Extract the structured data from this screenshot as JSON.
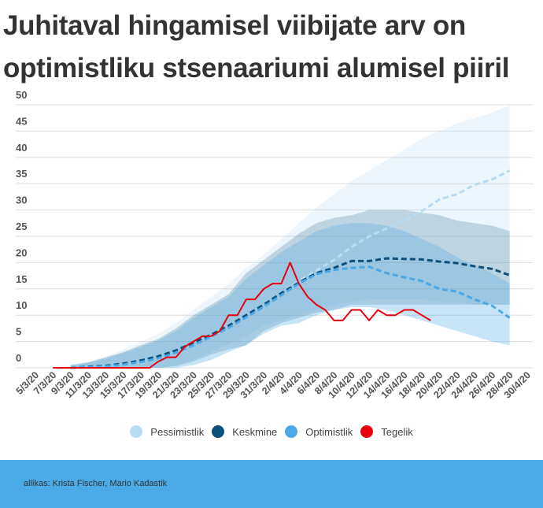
{
  "chart_data": {
    "type": "area",
    "title": "Juhitaval hingamisel viibijate arv on optimistliku stsenaariumi alumisel piiril",
    "xlabel": "",
    "ylabel": "",
    "ylim": [
      0,
      50
    ],
    "yticks": [
      0,
      5,
      10,
      15,
      20,
      25,
      30,
      35,
      40,
      45,
      50
    ],
    "grid": true,
    "legend_placement": "bottom",
    "x": [
      "5/3/20",
      "7/3/20",
      "9/3/20",
      "11/3/20",
      "13/3/20",
      "15/3/20",
      "17/3/20",
      "19/3/20",
      "21/3/20",
      "23/3/20",
      "25/3/20",
      "27/3/20",
      "29/3/20",
      "31/3/20",
      "2/4/20",
      "4/4/20",
      "6/4/20",
      "8/4/20",
      "10/4/20",
      "12/4/20",
      "14/4/20",
      "16/4/20",
      "18/4/20",
      "20/4/20",
      "22/4/20",
      "24/4/20",
      "26/4/20",
      "28/4/20",
      "30/4/20"
    ],
    "bands": [
      {
        "name": "Pessimistlik",
        "color": "#b8dcf5",
        "lower": [
          null,
          null,
          0,
          0,
          0,
          0,
          0,
          0,
          0.5,
          1.5,
          3,
          4.5,
          6,
          8,
          9,
          10,
          11,
          12,
          12.5,
          13,
          13,
          13,
          13,
          12.5,
          12.5,
          12,
          12,
          12,
          null
        ],
        "upper": [
          null,
          null,
          0.6,
          1.2,
          2.2,
          3.5,
          5,
          6.5,
          8.5,
          11,
          13.5,
          16,
          19,
          21.5,
          24.5,
          27.5,
          30.5,
          33,
          35.5,
          37.5,
          39.5,
          41.5,
          43.5,
          45,
          46.5,
          47.5,
          48.5,
          50,
          null
        ]
      },
      {
        "name": "Keskmine",
        "color": "#0b4f7a",
        "lower": [
          null,
          null,
          0,
          0,
          0,
          0,
          0,
          0,
          0.3,
          1.2,
          2.5,
          3.5,
          4.3,
          7,
          8.5,
          9.5,
          10.5,
          11,
          12,
          12,
          12,
          12,
          12,
          12,
          12,
          12,
          12,
          12,
          null
        ],
        "upper": [
          null,
          null,
          0.5,
          1,
          2,
          3,
          4.3,
          5.5,
          7.5,
          10,
          12,
          14,
          18,
          20.5,
          23,
          25.5,
          27.5,
          28.5,
          29,
          30,
          30,
          30,
          29.5,
          29,
          28,
          27.5,
          27,
          26,
          null
        ]
      },
      {
        "name": "Optimistlik",
        "color": "#4aa9e6",
        "lower": [
          null,
          null,
          0,
          0,
          0,
          0,
          0,
          0,
          0,
          0.5,
          1.5,
          3,
          4.3,
          6.5,
          8,
          8.5,
          10,
          11,
          11.5,
          11.5,
          11,
          10,
          9,
          8,
          7,
          6,
          5,
          4.3,
          null
        ],
        "upper": [
          null,
          null,
          0.5,
          1,
          1.8,
          2.8,
          4,
          5.2,
          7,
          9.5,
          11.5,
          13.5,
          17,
          19.5,
          22,
          24,
          26,
          27,
          27.5,
          27.5,
          27,
          26,
          24.5,
          23,
          21,
          19.5,
          18,
          16,
          null
        ]
      }
    ],
    "series": [
      {
        "name": "Pessimistlik",
        "color": "#b8dcf5",
        "style": "dashed",
        "values": [
          null,
          null,
          0,
          0.2,
          0.4,
          0.8,
          1.4,
          2.2,
          3.3,
          4.8,
          6.3,
          8,
          10,
          12,
          14.2,
          16.5,
          18.5,
          20.5,
          23,
          25,
          26.5,
          28,
          29.8,
          32,
          33,
          34.8,
          35.8,
          37.5,
          null
        ]
      },
      {
        "name": "Keskmine",
        "color": "#0b4f7a",
        "style": "dashed",
        "values": [
          null,
          null,
          0,
          0.2,
          0.4,
          0.8,
          1.4,
          2.2,
          3.3,
          4.8,
          6.3,
          8,
          10,
          12,
          14.2,
          16.2,
          18,
          19,
          20.3,
          20.3,
          20.8,
          20.7,
          20.6,
          20.2,
          19.9,
          19.3,
          18.8,
          17.6,
          null
        ]
      },
      {
        "name": "Optimistlik",
        "color": "#4aa9e6",
        "style": "dashed",
        "values": [
          null,
          null,
          0,
          0.1,
          0.3,
          0.6,
          1.1,
          1.8,
          2.9,
          4.3,
          5.9,
          7.6,
          9.6,
          11.6,
          13.8,
          16,
          17.8,
          18.6,
          19,
          19.2,
          18,
          17.2,
          16.5,
          15,
          14.5,
          13,
          11.8,
          9.5,
          null
        ]
      }
    ],
    "actual": {
      "name": "Tegelik",
      "color": "#e8000b",
      "points": [
        [
          "7/3/20",
          0
        ],
        [
          "8/3/20",
          0
        ],
        [
          "9/3/20",
          0
        ],
        [
          "10/3/20",
          0
        ],
        [
          "11/3/20",
          0
        ],
        [
          "12/3/20",
          0
        ],
        [
          "13/3/20",
          0
        ],
        [
          "14/3/20",
          0
        ],
        [
          "15/3/20",
          0
        ],
        [
          "16/3/20",
          0
        ],
        [
          "17/3/20",
          0
        ],
        [
          "18/3/20",
          0
        ],
        [
          "19/3/20",
          1.2
        ],
        [
          "20/3/20",
          2
        ],
        [
          "21/3/20",
          2
        ],
        [
          "22/3/20",
          4
        ],
        [
          "23/3/20",
          5
        ],
        [
          "24/3/20",
          6
        ],
        [
          "25/3/20",
          6
        ],
        [
          "26/3/20",
          7
        ],
        [
          "27/3/20",
          10
        ],
        [
          "28/3/20",
          10
        ],
        [
          "29/3/20",
          13
        ],
        [
          "30/3/20",
          13
        ],
        [
          "31/3/20",
          15
        ],
        [
          "1/4/20",
          16
        ],
        [
          "2/4/20",
          16
        ],
        [
          "3/4/20",
          20
        ],
        [
          "4/4/20",
          16
        ],
        [
          "5/4/20",
          13.5
        ],
        [
          "6/4/20",
          12
        ],
        [
          "7/4/20",
          11
        ],
        [
          "8/4/20",
          9
        ],
        [
          "9/4/20",
          9
        ],
        [
          "10/4/20",
          11
        ],
        [
          "11/4/20",
          11
        ],
        [
          "12/4/20",
          9
        ],
        [
          "13/4/20",
          11
        ],
        [
          "14/4/20",
          10
        ],
        [
          "15/4/20",
          10
        ],
        [
          "16/4/20",
          11
        ],
        [
          "17/4/20",
          11
        ],
        [
          "18/4/20",
          10
        ],
        [
          "19/4/20",
          9
        ]
      ]
    }
  },
  "legend": [
    {
      "label": "Pessimistlik",
      "color": "#b8dcf5"
    },
    {
      "label": "Keskmine",
      "color": "#0b4f7a"
    },
    {
      "label": "Optimistlik",
      "color": "#4aa9e6"
    },
    {
      "label": "Tegelik",
      "color": "#e8000b"
    }
  ],
  "footer": {
    "source": "allikas: Krista Fischer, Mario Kadastik",
    "color": "#4aabe6"
  }
}
